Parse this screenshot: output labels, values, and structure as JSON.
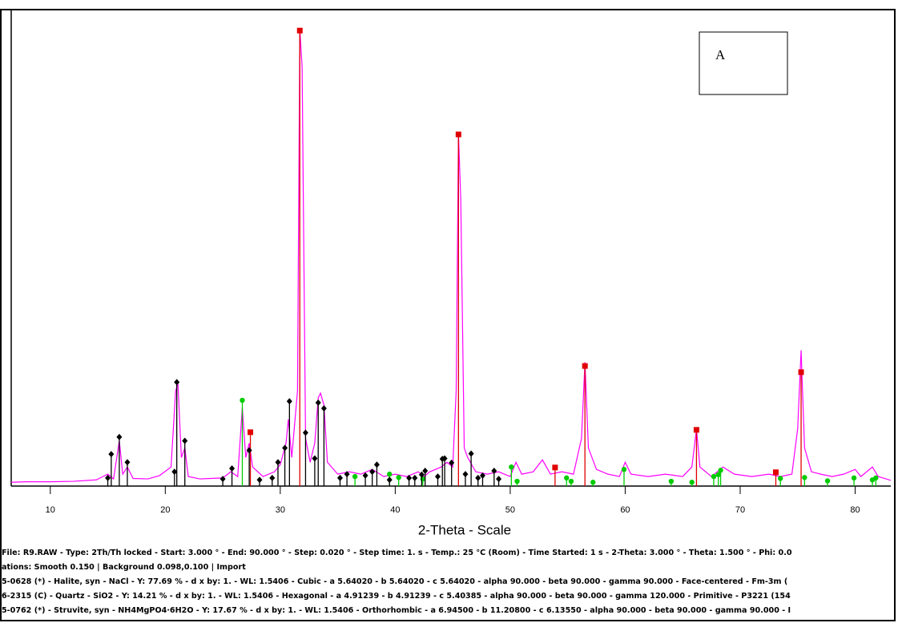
{
  "chart_data": {
    "type": "line",
    "annotation": "A",
    "xlabel": "2-Theta - Scale",
    "xlim": [
      6.6,
      83.1
    ],
    "ylim": [
      0,
      100
    ],
    "xticks": [
      10,
      20,
      30,
      40,
      50,
      60,
      70,
      80
    ],
    "notes": [
      "File: R9.RAW - Type: 2Th/Th locked - Start: 3.000 ° - End: 90.000 ° - Step: 0.020 ° - Step time: 1. s - Temp.: 25 °C (Room) - Time Started: 1 s - 2-Theta: 3.000 ° - Theta: 1.500 ° - Phi: 0.0",
      "ations: Smooth 0.150 | Background 0.098,0.100 | Import",
      "5-0628 (*) - Halite, syn - NaCl - Y: 77.69 % - d x by: 1. - WL: 1.5406 - Cubic - a 5.64020 - b 5.64020 - c 5.64020 - alpha 90.000 - beta 90.000 - gamma 90.000 - Face-centered - Fm-3m (",
      "6-2315 (C) - Quartz - SiO2 - Y: 14.21 % - d x by: 1. - WL: 1.5406 - Hexagonal - a 4.91239 - b 4.91239 - c 5.40385 - alpha 90.000 - beta 90.000 - gamma 120.000 - Primitive - P3221 (154",
      "5-0762 (*) - Struvite, syn - NH4MgPO4·6H2O - Y: 17.67 % - d x by: 1. - WL: 1.5406 - Orthorhombic - a 6.94500 - b 11.20800 - c 6.13550 - alpha 90.000 - beta 90.000 - gamma 90.000 - I"
    ],
    "series": [
      {
        "type": "line",
        "color": "#ff00ff",
        "x": [
          6.6,
          8,
          10,
          12,
          14,
          15,
          15.5,
          16,
          16.3,
          16.7,
          17.2,
          18.5,
          19.5,
          20.5,
          20.9,
          21.1,
          21.4,
          21.7,
          22,
          23,
          25,
          25.7,
          26.3,
          26.7,
          27,
          27.3,
          27.6,
          28.5,
          29.5,
          30,
          30.5,
          30.7,
          31,
          31.5,
          31.7,
          31.9,
          32.2,
          32.6,
          33,
          33.3,
          33.5,
          33.8,
          34.1,
          35,
          36,
          37,
          38,
          39,
          40,
          41,
          42,
          42.5,
          43,
          44,
          44.5,
          45,
          45.3,
          45.5,
          45.7,
          46,
          46.3,
          47,
          48,
          49,
          50,
          50.5,
          51,
          52,
          52.8,
          53.5,
          54.5,
          55.5,
          56.2,
          56.5,
          56.8,
          57.5,
          58.5,
          59.5,
          60,
          60.5,
          62,
          63.5,
          65,
          65.8,
          66.2,
          66.5,
          67.5,
          68.5,
          69.5,
          71,
          72.5,
          73.5,
          74.5,
          75,
          75.3,
          75.6,
          76.2,
          77,
          78,
          79,
          80,
          80.5,
          81.5,
          82,
          83.1
        ],
        "values": [
          0.8,
          0.9,
          0.9,
          1.0,
          1.3,
          2.5,
          1.5,
          9.5,
          2.5,
          4,
          1.6,
          1.5,
          2.2,
          4,
          20,
          21.5,
          6,
          8,
          2,
          1.5,
          1.7,
          3,
          2,
          16.5,
          6,
          9,
          4,
          2,
          3,
          4.5,
          9,
          14,
          6,
          20,
          96,
          88,
          10,
          5,
          9,
          18.5,
          19.5,
          17,
          5,
          2.5,
          3,
          2.5,
          3.5,
          2,
          2.5,
          2,
          3,
          2,
          3,
          4,
          5,
          4,
          20,
          74,
          60,
          8,
          6,
          3,
          2.5,
          3,
          2,
          5,
          2.5,
          3,
          5.5,
          2.5,
          3,
          2.5,
          10,
          26,
          8,
          3.5,
          2.5,
          2,
          5,
          2.5,
          2,
          2.5,
          2,
          4,
          12,
          4,
          2,
          4,
          2.5,
          2,
          2.5,
          2,
          2.5,
          12,
          28.5,
          8,
          3,
          2.5,
          2,
          2.5,
          3.5,
          2,
          4,
          2,
          1.2
        ]
      },
      {
        "type": "stem",
        "color": "#e00000",
        "marker": "square",
        "x": [
          27.4,
          31.7,
          45.5,
          53.9,
          56.5,
          66.2,
          73.1,
          75.3
        ],
        "values": [
          11.3,
          95.6,
          73.8,
          3.9,
          25.2,
          11.8,
          2.9,
          23.9
        ]
      },
      {
        "type": "stem",
        "color": "#00cc00",
        "marker": "circle",
        "x": [
          26.7,
          36.5,
          39.5,
          40.3,
          42.4,
          50.1,
          50.6,
          54.9,
          55.3,
          57.2,
          59.9,
          64,
          65.8,
          67.7,
          68.1,
          68.3,
          73.5,
          75.6,
          77.6,
          79.9,
          81.5,
          81.8
        ],
        "values": [
          18,
          2,
          2.5,
          1.8,
          1.5,
          4,
          1,
          1.7,
          1,
          0.8,
          3.5,
          1,
          0.8,
          2,
          2.4,
          3.3,
          1.6,
          1.8,
          1.1,
          1.7,
          1.3,
          1.7
        ]
      },
      {
        "type": "stem",
        "color": "#000000",
        "marker": "diamond",
        "x": [
          15,
          15.3,
          16,
          16.7,
          20.8,
          21,
          21.7,
          25,
          25.8,
          27.3,
          28.2,
          29.3,
          29.8,
          30.4,
          30.8,
          32.2,
          33,
          33.3,
          33.8,
          35.2,
          35.8,
          37.4,
          38,
          38.4,
          39.5,
          41.2,
          41.7,
          42.3,
          42.6,
          43.7,
          44.1,
          44.3,
          44.9,
          46.1,
          46.6,
          47.2,
          47.6,
          48.6,
          49
        ],
        "values": [
          1.7,
          6.7,
          10.3,
          5,
          3,
          21.8,
          9.5,
          1.5,
          3.7,
          7.5,
          1.3,
          1.7,
          5,
          8,
          17.8,
          11.2,
          5.8,
          17.5,
          16.3,
          1.7,
          2.5,
          2.2,
          3,
          4.5,
          1.3,
          1.7,
          1.7,
          2.4,
          3.2,
          2,
          5.7,
          5.8,
          4.9,
          2.5,
          6.8,
          1.7,
          2.2,
          3.2,
          1.5
        ]
      }
    ]
  }
}
